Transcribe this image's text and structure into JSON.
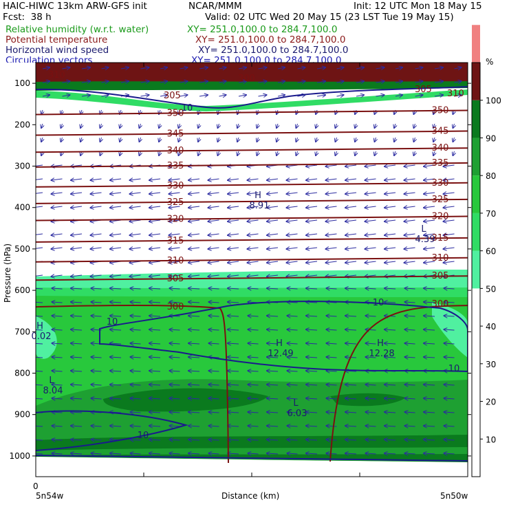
{
  "header": {
    "title_left": "HAIC-HIWC 13km ARW-GFS init",
    "title_center": "NCAR/MMM",
    "init": "Init: 12 UTC Mon 18 May 15",
    "fcst": "Fcst:  38 h",
    "valid": "Valid: 02 UTC Wed 20 May 15 (23 LST Tue 19 May 15)"
  },
  "fields": [
    {
      "name": "Relative humidity (w.r.t. water)",
      "xy": "XY= 251.0,100.0 to 284.7,100.0",
      "color": "#1a9a1a"
    },
    {
      "name": "Potential temperature",
      "xy": "XY= 251.0,100.0 to 284.7,100.0",
      "color": "#8b1a1a"
    },
    {
      "name": "Horizontal wind speed",
      "xy": "XY= 251.0,100.0 to 284.7,100.0",
      "color": "#1a1a6e"
    },
    {
      "name": "Circulation vectors",
      "xy": "XY= 251.0,100.0 to 284.7,100.0",
      "color": "#1a1ab0"
    }
  ],
  "chart_data": {
    "type": "heatmap",
    "ylabel": "Pressure (hPa)",
    "xlabel": "Distance (km)",
    "x_start_label": "5n54w",
    "x_end_label": "5n50w",
    "x_zero_label": "0",
    "y_ticks": [
      100,
      200,
      300,
      400,
      500,
      600,
      700,
      800,
      900,
      1000
    ],
    "y_range": [
      50,
      1050
    ],
    "colorbar": {
      "unit": "%",
      "ticks": [
        10,
        20,
        30,
        40,
        50,
        60,
        70,
        80,
        90,
        100
      ],
      "bands": [
        {
          "from": 50,
          "to": 60,
          "color": "#50f0a0"
        },
        {
          "from": 60,
          "to": 70,
          "color": "#30dc64"
        },
        {
          "from": 70,
          "to": 80,
          "color": "#28c83c"
        },
        {
          "from": 80,
          "to": 90,
          "color": "#1ea032"
        },
        {
          "from": 90,
          "to": 100,
          "color": "#0a7a1e"
        },
        {
          "from": 100,
          "to": 110,
          "color": "#6e1414"
        },
        {
          "from": 110,
          "to": 120,
          "color": "#f08080"
        }
      ]
    },
    "theta_contours": [
      {
        "label": "350",
        "p": 172
      },
      {
        "label": "345",
        "p": 222
      },
      {
        "label": "340",
        "p": 263
      },
      {
        "label": "335",
        "p": 299
      },
      {
        "label": "330",
        "p": 347
      },
      {
        "label": "325",
        "p": 387
      },
      {
        "label": "320",
        "p": 428
      },
      {
        "label": "315",
        "p": 480
      },
      {
        "label": "310",
        "p": 528
      },
      {
        "label": "305",
        "p": 572
      },
      {
        "label": "300",
        "p": 640
      }
    ],
    "theta_top_labels": [
      "310",
      "305",
      "300",
      "305",
      "310"
    ],
    "extrema": [
      {
        "type": "H",
        "value": "8.91",
        "p": 380
      },
      {
        "type": "L",
        "value": "4.39",
        "p": 480
      },
      {
        "type": "H",
        "value": "0.02",
        "p": 700
      },
      {
        "type": "H",
        "value": "12.49",
        "p": 770
      },
      {
        "type": "H",
        "value": "12.28",
        "p": 770
      },
      {
        "type": "L",
        "value": "8.04",
        "p": 850
      },
      {
        "type": "L",
        "value": "6.03",
        "p": 900
      }
    ],
    "wind_labels": [
      "10",
      "10",
      "10",
      "10",
      "10"
    ]
  }
}
